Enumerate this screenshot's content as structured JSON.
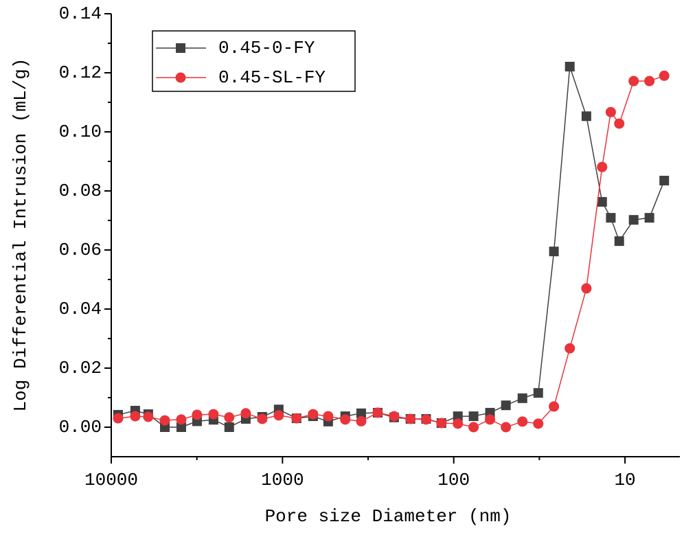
{
  "chart_data": {
    "type": "line",
    "xlabel": "Pore size Diameter (nm)",
    "ylabel": "Log Differential Intrusion (mL/g)",
    "xscale": "log",
    "xlim": [
      10000,
      4.78
    ],
    "xticks": [
      10000,
      1000,
      100,
      10
    ],
    "ylim": [
      -0.01,
      0.14
    ],
    "yticks": [
      {
        "value": 0,
        "label": "0.00"
      },
      0.02,
      0.04,
      0.06,
      0.08,
      {
        "value": 0.1,
        "label": "0.10"
      },
      0.12,
      0.14
    ],
    "legend": "upper left",
    "x": [
      9120,
      7244,
      6080,
      4865,
      3900,
      3155,
      2529,
      2047,
      1638,
      1313,
      1052,
      828,
      663,
      541,
      430,
      347,
      278,
      223,
      179,
      145,
      118,
      94.6,
      76.6,
      61.4,
      49.6,
      39.7,
      32.1,
      26.0,
      21.0,
      16.8,
      13.6,
      12.1,
      10.8,
      8.9,
      7.2,
      5.9
    ],
    "series": [
      {
        "name": "0.45-0-FY",
        "color": "#404040",
        "marker": "square",
        "values": [
          0.0042,
          0.0056,
          0.0044,
          0.0,
          0.0,
          0.002,
          0.0025,
          0.0,
          0.0028,
          0.0035,
          0.006,
          0.003,
          0.0037,
          0.0019,
          0.0037,
          0.0047,
          0.0049,
          0.0033,
          0.0028,
          0.0028,
          0.0014,
          0.0037,
          0.0037,
          0.0049,
          0.0074,
          0.0098,
          0.0116,
          0.0595,
          0.1221,
          0.1053,
          0.0763,
          0.0709,
          0.063,
          0.0702,
          0.0709,
          0.0835
        ]
      },
      {
        "name": "0.45-SL-FY",
        "color": "#e8343a",
        "marker": "circle",
        "values": [
          0.003,
          0.0037,
          0.0035,
          0.0023,
          0.0026,
          0.0042,
          0.0044,
          0.0033,
          0.0047,
          0.0028,
          0.004,
          0.003,
          0.0044,
          0.0037,
          0.0026,
          0.002,
          0.0049,
          0.0037,
          0.0028,
          0.0026,
          0.0014,
          0.0012,
          0.0,
          0.0026,
          0.0,
          0.0019,
          0.0012,
          0.007,
          0.0267,
          0.047,
          0.0881,
          0.1067,
          0.1028,
          0.1172,
          0.1172,
          0.119
        ]
      }
    ]
  }
}
